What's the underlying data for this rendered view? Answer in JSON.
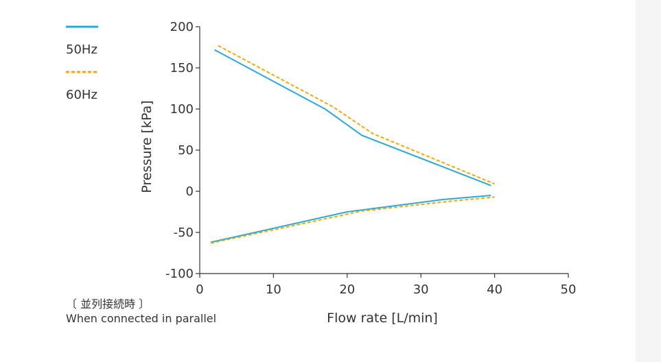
{
  "chart_data": {
    "type": "line",
    "xlabel": "Flow rate [L/min]",
    "ylabel": "Pressure [kPa]",
    "xlim": [
      0,
      50
    ],
    "ylim": [
      -100,
      200
    ],
    "x_ticks": [
      0,
      10,
      20,
      30,
      40,
      50
    ],
    "y_ticks": [
      -100,
      -50,
      0,
      50,
      100,
      150,
      200
    ],
    "grid": false,
    "legend_position": "top-left",
    "colors": {
      "50Hz": "#29a8e0",
      "60Hz": "#f5a800"
    },
    "series": [
      {
        "name": "50Hz",
        "curve": "pressure",
        "style": "solid",
        "x": [
          2,
          17,
          22,
          39.5
        ],
        "y": [
          172,
          100,
          68,
          7
        ]
      },
      {
        "name": "50Hz",
        "curve": "vacuum",
        "style": "solid",
        "x": [
          1.5,
          20,
          33,
          39.5
        ],
        "y": [
          -62,
          -25,
          -10,
          -5
        ]
      },
      {
        "name": "60Hz",
        "curve": "pressure",
        "style": "dashed",
        "x": [
          2.5,
          18,
          23.5,
          40
        ],
        "y": [
          177,
          103,
          70,
          9
        ]
      },
      {
        "name": "60Hz",
        "curve": "vacuum",
        "style": "dashed",
        "x": [
          1.5,
          22,
          34,
          40
        ],
        "y": [
          -63,
          -24,
          -12,
          -7
        ]
      }
    ],
    "legend": [
      {
        "label": "50Hz",
        "style": "solid"
      },
      {
        "label": "60Hz",
        "style": "dashed"
      }
    ]
  },
  "notes": {
    "japanese": "〔 並列接続時 〕",
    "english": "When connected in parallel"
  }
}
